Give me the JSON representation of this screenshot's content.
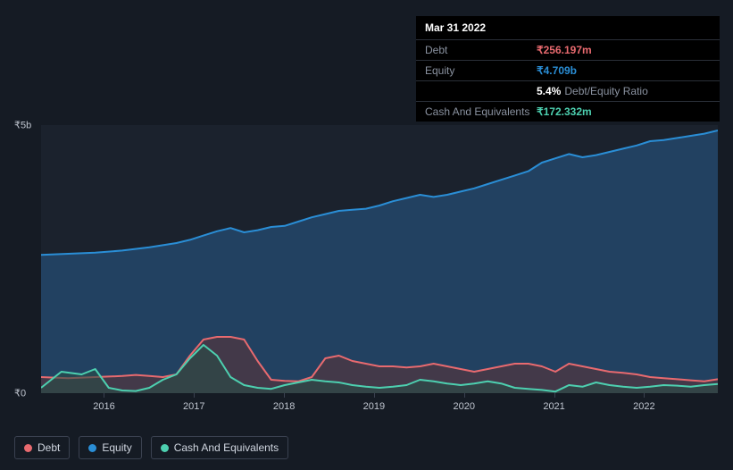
{
  "tooltip": {
    "date": "Mar 31 2022",
    "rows": [
      {
        "label": "Debt",
        "value": "₹256.197m",
        "color": "#e86a6f"
      },
      {
        "label": "Equity",
        "value": "₹4.709b",
        "color": "#2a8ed6"
      },
      {
        "label": "",
        "value": "5.4%",
        "extra": "Debt/Equity Ratio",
        "color": "#ffffff"
      },
      {
        "label": "Cash And Equivalents",
        "value": "₹172.332m",
        "color": "#4dd0b0"
      }
    ]
  },
  "chart": {
    "type": "area",
    "background": "#1b222d",
    "page_background": "#151b24",
    "y": {
      "min": 0,
      "max": 5,
      "ticks": [
        {
          "v": 5,
          "label": "₹5b"
        },
        {
          "v": 0,
          "label": "₹0"
        }
      ]
    },
    "x": {
      "labels": [
        "2016",
        "2017",
        "2018",
        "2019",
        "2020",
        "2021",
        "2022"
      ],
      "positions": [
        0.093,
        0.226,
        0.359,
        0.492,
        0.625,
        0.758,
        0.891
      ]
    },
    "series": [
      {
        "name": "Equity",
        "color": "#2a8ed6",
        "fill": "#23476b",
        "fill_opacity": 0.85,
        "line_width": 2,
        "data": [
          [
            0.0,
            2.58
          ],
          [
            0.04,
            2.6
          ],
          [
            0.08,
            2.62
          ],
          [
            0.12,
            2.66
          ],
          [
            0.16,
            2.72
          ],
          [
            0.2,
            2.8
          ],
          [
            0.22,
            2.86
          ],
          [
            0.24,
            2.94
          ],
          [
            0.26,
            3.02
          ],
          [
            0.28,
            3.08
          ],
          [
            0.3,
            3.0
          ],
          [
            0.32,
            3.04
          ],
          [
            0.34,
            3.1
          ],
          [
            0.36,
            3.12
          ],
          [
            0.38,
            3.2
          ],
          [
            0.4,
            3.28
          ],
          [
            0.42,
            3.34
          ],
          [
            0.44,
            3.4
          ],
          [
            0.46,
            3.42
          ],
          [
            0.48,
            3.44
          ],
          [
            0.5,
            3.5
          ],
          [
            0.52,
            3.58
          ],
          [
            0.54,
            3.64
          ],
          [
            0.56,
            3.7
          ],
          [
            0.58,
            3.66
          ],
          [
            0.6,
            3.7
          ],
          [
            0.62,
            3.76
          ],
          [
            0.64,
            3.82
          ],
          [
            0.66,
            3.9
          ],
          [
            0.68,
            3.98
          ],
          [
            0.7,
            4.06
          ],
          [
            0.72,
            4.14
          ],
          [
            0.74,
            4.3
          ],
          [
            0.76,
            4.38
          ],
          [
            0.78,
            4.46
          ],
          [
            0.8,
            4.4
          ],
          [
            0.82,
            4.44
          ],
          [
            0.84,
            4.5
          ],
          [
            0.86,
            4.56
          ],
          [
            0.88,
            4.62
          ],
          [
            0.9,
            4.7
          ],
          [
            0.92,
            4.72
          ],
          [
            0.94,
            4.76
          ],
          [
            0.96,
            4.8
          ],
          [
            0.98,
            4.84
          ],
          [
            1.0,
            4.9
          ]
        ]
      },
      {
        "name": "Debt",
        "color": "#e86a6f",
        "fill": "#5a3438",
        "fill_opacity": 0.6,
        "line_width": 2,
        "data": [
          [
            0.0,
            0.3
          ],
          [
            0.04,
            0.28
          ],
          [
            0.08,
            0.3
          ],
          [
            0.12,
            0.32
          ],
          [
            0.14,
            0.34
          ],
          [
            0.16,
            0.32
          ],
          [
            0.18,
            0.3
          ],
          [
            0.2,
            0.35
          ],
          [
            0.22,
            0.7
          ],
          [
            0.24,
            1.0
          ],
          [
            0.26,
            1.05
          ],
          [
            0.28,
            1.05
          ],
          [
            0.3,
            1.0
          ],
          [
            0.32,
            0.6
          ],
          [
            0.34,
            0.25
          ],
          [
            0.36,
            0.23
          ],
          [
            0.38,
            0.22
          ],
          [
            0.4,
            0.3
          ],
          [
            0.42,
            0.65
          ],
          [
            0.44,
            0.7
          ],
          [
            0.46,
            0.6
          ],
          [
            0.48,
            0.55
          ],
          [
            0.5,
            0.5
          ],
          [
            0.52,
            0.5
          ],
          [
            0.54,
            0.48
          ],
          [
            0.56,
            0.5
          ],
          [
            0.58,
            0.55
          ],
          [
            0.6,
            0.5
          ],
          [
            0.62,
            0.45
          ],
          [
            0.64,
            0.4
          ],
          [
            0.66,
            0.45
          ],
          [
            0.68,
            0.5
          ],
          [
            0.7,
            0.55
          ],
          [
            0.72,
            0.55
          ],
          [
            0.74,
            0.5
          ],
          [
            0.76,
            0.4
          ],
          [
            0.78,
            0.55
          ],
          [
            0.8,
            0.5
          ],
          [
            0.82,
            0.45
          ],
          [
            0.84,
            0.4
          ],
          [
            0.86,
            0.38
          ],
          [
            0.88,
            0.35
          ],
          [
            0.9,
            0.3
          ],
          [
            0.92,
            0.28
          ],
          [
            0.94,
            0.26
          ],
          [
            0.96,
            0.24
          ],
          [
            0.98,
            0.22
          ],
          [
            1.0,
            0.26
          ]
        ]
      },
      {
        "name": "Cash And Equivalents",
        "color": "#4dd0b0",
        "fill": "#2a4d46",
        "fill_opacity": 0.6,
        "line_width": 2,
        "data": [
          [
            0.0,
            0.1
          ],
          [
            0.03,
            0.4
          ],
          [
            0.06,
            0.35
          ],
          [
            0.08,
            0.45
          ],
          [
            0.1,
            0.1
          ],
          [
            0.12,
            0.05
          ],
          [
            0.14,
            0.04
          ],
          [
            0.16,
            0.1
          ],
          [
            0.18,
            0.25
          ],
          [
            0.2,
            0.35
          ],
          [
            0.22,
            0.65
          ],
          [
            0.24,
            0.9
          ],
          [
            0.26,
            0.7
          ],
          [
            0.28,
            0.3
          ],
          [
            0.3,
            0.15
          ],
          [
            0.32,
            0.1
          ],
          [
            0.34,
            0.08
          ],
          [
            0.36,
            0.15
          ],
          [
            0.38,
            0.2
          ],
          [
            0.4,
            0.25
          ],
          [
            0.42,
            0.22
          ],
          [
            0.44,
            0.2
          ],
          [
            0.46,
            0.15
          ],
          [
            0.48,
            0.12
          ],
          [
            0.5,
            0.1
          ],
          [
            0.52,
            0.12
          ],
          [
            0.54,
            0.15
          ],
          [
            0.56,
            0.25
          ],
          [
            0.58,
            0.22
          ],
          [
            0.6,
            0.18
          ],
          [
            0.62,
            0.15
          ],
          [
            0.64,
            0.18
          ],
          [
            0.66,
            0.22
          ],
          [
            0.68,
            0.18
          ],
          [
            0.7,
            0.1
          ],
          [
            0.72,
            0.08
          ],
          [
            0.74,
            0.06
          ],
          [
            0.76,
            0.03
          ],
          [
            0.78,
            0.15
          ],
          [
            0.8,
            0.12
          ],
          [
            0.82,
            0.2
          ],
          [
            0.84,
            0.15
          ],
          [
            0.86,
            0.12
          ],
          [
            0.88,
            0.1
          ],
          [
            0.9,
            0.12
          ],
          [
            0.92,
            0.15
          ],
          [
            0.94,
            0.14
          ],
          [
            0.96,
            0.12
          ],
          [
            0.98,
            0.15
          ],
          [
            1.0,
            0.17
          ]
        ]
      }
    ],
    "legend": [
      {
        "label": "Debt",
        "color": "#e86a6f"
      },
      {
        "label": "Equity",
        "color": "#2a8ed6"
      },
      {
        "label": "Cash And Equivalents",
        "color": "#4dd0b0"
      }
    ]
  }
}
